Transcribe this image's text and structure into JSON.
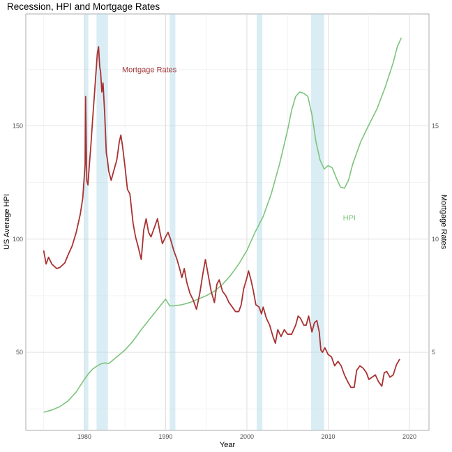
{
  "chart_data": {
    "type": "line",
    "title": "Recession, HPI and Mortgage Rates",
    "xlabel": "Year",
    "ylabel": "US Average HPI",
    "y2label": "Mortgage Rates",
    "xlim": [
      1972.8,
      2022.4
    ],
    "ylim": [
      15.5,
      199.5
    ],
    "y2lim": [
      1.55,
      19.95
    ],
    "x_ticks": [
      "1980",
      "1990",
      "2000",
      "2010",
      "2020"
    ],
    "y_ticks": [
      "50",
      "100",
      "150"
    ],
    "y2_ticks": [
      "5",
      "10",
      "15"
    ],
    "grid": true,
    "recessions": [
      [
        1980.0,
        1980.5
      ],
      [
        1981.5,
        1982.9
      ],
      [
        1990.5,
        1991.2
      ],
      [
        2001.2,
        2001.9
      ],
      [
        2007.9,
        2009.5
      ]
    ],
    "annotations": [
      {
        "text": "Mortgage Rates",
        "x": 1988.0,
        "y": 17.5,
        "color": "#a23a3a"
      },
      {
        "text": "HPI",
        "x": 2012.6,
        "y": 10.95,
        "color": "#7cc47c"
      }
    ],
    "series": [
      {
        "name": "HPI",
        "axis": "left",
        "color": "#7cc47c",
        "x": [
          1975.0,
          1976.0,
          1977.0,
          1978.0,
          1979.0,
          1980.0,
          1980.5,
          1981.0,
          1981.5,
          1982.0,
          1982.5,
          1983.0,
          1984.0,
          1985.0,
          1986.0,
          1987.0,
          1988.0,
          1989.0,
          1990.0,
          1990.5,
          1991.0,
          1992.0,
          1993.0,
          1994.0,
          1995.0,
          1996.0,
          1997.0,
          1998.0,
          1999.0,
          2000.0,
          2001.0,
          2002.0,
          2003.0,
          2004.0,
          2005.0,
          2005.5,
          2006.0,
          2006.5,
          2007.0,
          2007.5,
          2008.0,
          2008.5,
          2009.0,
          2009.5,
          2010.0,
          2010.5,
          2011.0,
          2011.5,
          2012.0,
          2012.5,
          2013.0,
          2014.0,
          2015.0,
          2016.0,
          2017.0,
          2018.0,
          2018.5,
          2019.0
        ],
        "values": [
          23.5,
          24.5,
          26.0,
          28.5,
          32.5,
          38.0,
          40.5,
          42.5,
          43.8,
          44.8,
          45.3,
          45.0,
          48.0,
          51.0,
          55.0,
          60.0,
          64.5,
          69.0,
          73.5,
          70.5,
          70.5,
          71.0,
          72.0,
          73.5,
          75.0,
          77.0,
          80.0,
          84.0,
          89.0,
          95.0,
          103.0,
          110.0,
          120.0,
          133.0,
          148.0,
          157.0,
          163.0,
          165.0,
          164.5,
          163.0,
          155.0,
          143.0,
          135.0,
          131.0,
          132.5,
          131.5,
          127.0,
          123.0,
          122.5,
          126.0,
          133.0,
          143.0,
          150.5,
          157.5,
          167.0,
          178.0,
          185.0,
          189.0
        ]
      },
      {
        "name": "Mortgage Rates",
        "axis": "right",
        "color": "#a83232",
        "x": [
          1975.0,
          1975.3,
          1975.6,
          1976.0,
          1976.3,
          1976.6,
          1977.0,
          1977.3,
          1977.6,
          1978.0,
          1978.5,
          1979.0,
          1979.5,
          1979.8,
          1980.0,
          1980.1,
          1980.15,
          1980.3,
          1980.45,
          1980.6,
          1980.8,
          1981.0,
          1981.3,
          1981.6,
          1981.75,
          1981.9,
          1982.0,
          1982.15,
          1982.3,
          1982.5,
          1982.7,
          1982.85,
          1983.0,
          1983.3,
          1983.6,
          1984.0,
          1984.3,
          1984.5,
          1984.7,
          1985.0,
          1985.3,
          1985.6,
          1986.0,
          1986.3,
          1986.6,
          1987.0,
          1987.3,
          1987.6,
          1987.9,
          1988.2,
          1988.5,
          1988.8,
          1989.0,
          1989.3,
          1989.6,
          1990.0,
          1990.3,
          1990.6,
          1991.0,
          1991.4,
          1991.8,
          1992.0,
          1992.3,
          1992.6,
          1993.0,
          1993.4,
          1993.8,
          1994.2,
          1994.6,
          1994.9,
          1995.2,
          1995.6,
          1996.0,
          1996.3,
          1996.6,
          1997.0,
          1997.4,
          1997.8,
          1998.2,
          1998.6,
          1999.0,
          1999.3,
          1999.6,
          2000.0,
          2000.2,
          2000.5,
          2000.8,
          2001.1,
          2001.5,
          2001.8,
          2002.0,
          2002.4,
          2002.8,
          2003.2,
          2003.5,
          2003.8,
          2004.2,
          2004.6,
          2005.0,
          2005.5,
          2006.0,
          2006.3,
          2006.6,
          2007.0,
          2007.3,
          2007.6,
          2008.0,
          2008.3,
          2008.6,
          2008.9,
          2009.1,
          2009.3,
          2009.6,
          2010.0,
          2010.4,
          2010.8,
          2011.2,
          2011.6,
          2012.0,
          2012.4,
          2012.8,
          2013.2,
          2013.5,
          2013.9,
          2014.3,
          2014.7,
          2015.0,
          2015.4,
          2015.8,
          2016.2,
          2016.6,
          2016.9,
          2017.2,
          2017.6,
          2018.0,
          2018.4,
          2018.8
        ],
        "values": [
          9.5,
          8.9,
          9.2,
          8.9,
          8.8,
          8.7,
          8.75,
          8.85,
          8.95,
          9.3,
          9.7,
          10.3,
          11.1,
          11.8,
          12.8,
          13.3,
          16.3,
          12.6,
          12.4,
          13.2,
          14.1,
          15.2,
          16.7,
          18.2,
          18.5,
          17.6,
          17.4,
          16.5,
          16.9,
          15.6,
          13.8,
          13.5,
          13.0,
          12.6,
          13.0,
          13.5,
          14.3,
          14.6,
          14.1,
          13.2,
          12.2,
          12.0,
          10.7,
          10.1,
          9.7,
          9.1,
          10.4,
          10.9,
          10.3,
          10.1,
          10.4,
          10.7,
          10.9,
          10.3,
          9.8,
          10.1,
          10.3,
          10.0,
          9.5,
          9.1,
          8.6,
          8.3,
          8.7,
          8.1,
          7.6,
          7.3,
          6.9,
          7.6,
          8.5,
          9.1,
          8.5,
          7.7,
          7.2,
          8.0,
          8.2,
          7.7,
          7.5,
          7.2,
          7.0,
          6.8,
          6.8,
          7.1,
          7.8,
          8.3,
          8.6,
          8.2,
          7.7,
          7.1,
          7.0,
          6.7,
          7.0,
          6.5,
          6.2,
          5.7,
          5.4,
          6.0,
          5.7,
          6.0,
          5.8,
          5.8,
          6.2,
          6.6,
          6.5,
          6.2,
          6.2,
          6.6,
          5.9,
          6.3,
          6.4,
          5.9,
          5.1,
          5.0,
          5.2,
          4.9,
          4.8,
          4.4,
          4.6,
          4.4,
          4.0,
          3.7,
          3.45,
          3.45,
          4.2,
          4.4,
          4.3,
          4.1,
          3.8,
          3.9,
          4.0,
          3.7,
          3.5,
          4.1,
          4.15,
          3.9,
          4.0,
          4.45,
          4.7
        ]
      }
    ]
  }
}
